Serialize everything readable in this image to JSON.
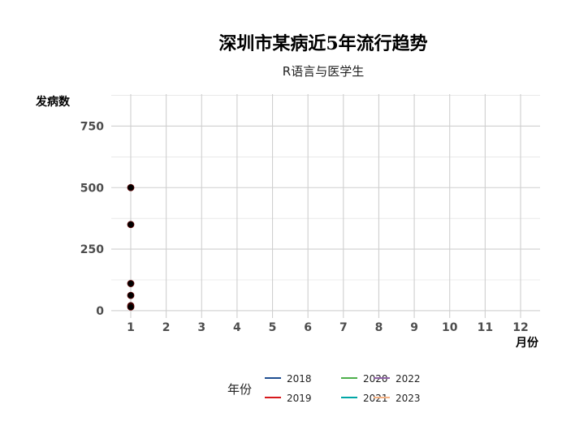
{
  "chart_data": {
    "type": "line",
    "title": "深圳市某病近5年流行趋势",
    "subtitle": "R语言与医学生",
    "xlabel": "月份",
    "ylabel": "发病数",
    "x_ticks": [
      1,
      2,
      3,
      4,
      5,
      6,
      7,
      8,
      9,
      10,
      11,
      12
    ],
    "y_ticks": [
      0,
      250,
      500,
      750
    ],
    "xlim": [
      0.45,
      12.55
    ],
    "ylim": [
      -30,
      880
    ],
    "grid": true,
    "legend": {
      "title": "年份",
      "position": "bottom",
      "entries": [
        {
          "name": "2018",
          "color": "#1F4E91"
        },
        {
          "name": "2019",
          "color": "#D7191C"
        },
        {
          "name": "2020",
          "color": "#4DAF4A"
        },
        {
          "name": "2021",
          "color": "#00A6A6"
        },
        {
          "name": "2022",
          "color": "#8E62A6"
        },
        {
          "name": "2023",
          "color": "#F4B183"
        }
      ]
    },
    "points": [
      {
        "x": 1,
        "y": 500
      },
      {
        "x": 1,
        "y": 350
      },
      {
        "x": 1,
        "y": 110
      },
      {
        "x": 1,
        "y": 62
      },
      {
        "x": 1,
        "y": 20
      },
      {
        "x": 1,
        "y": 15
      }
    ],
    "point_color": "#000000"
  }
}
